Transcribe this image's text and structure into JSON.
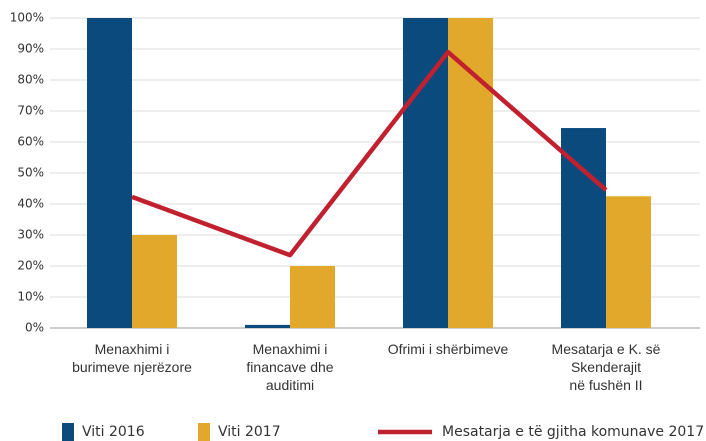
{
  "chart_data": {
    "type": "bar",
    "categories": [
      "Menaxhimi i\nburimeve njerëzore",
      "Menaxhimi i\nfinancave dhe\nauditimi",
      "Ofrimi i shërbimeve",
      "Mesatarja e K. së\nSkenderajit\nnë fushën II"
    ],
    "series": [
      {
        "name": "Viti 2016",
        "color": "#0b4a7d",
        "values": [
          100,
          1,
          100,
          64.5
        ]
      },
      {
        "name": "Viti 2017",
        "color": "#e2a82c",
        "values": [
          30,
          20,
          100,
          42.5
        ]
      },
      {
        "name": "Mesatarja e të gjitha komunave 2017",
        "color": "#c1202f",
        "type": "line",
        "values": [
          42.3,
          23.5,
          89,
          44.5
        ]
      }
    ],
    "ylim": [
      0,
      100
    ],
    "yticks": [
      {
        "value": 0,
        "label": "0%"
      },
      {
        "value": 10,
        "label": "10%"
      },
      {
        "value": 20,
        "label": "20%"
      },
      {
        "value": 30,
        "label": "30%"
      },
      {
        "value": 40,
        "label": "40%"
      },
      {
        "value": 50,
        "label": "50%"
      },
      {
        "value": 60,
        "label": "60%"
      },
      {
        "value": 70,
        "label": "70%"
      },
      {
        "value": 80,
        "label": "80%"
      },
      {
        "value": 90,
        "label": "90%"
      },
      {
        "value": 100,
        "label": "100%"
      }
    ],
    "grid": true
  }
}
